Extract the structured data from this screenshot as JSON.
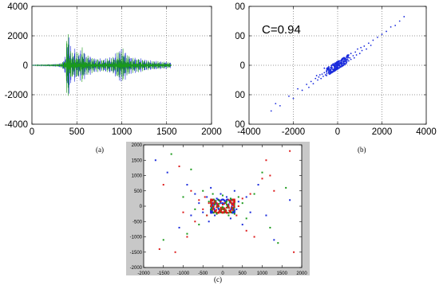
{
  "panels": {
    "a": {
      "label": "(a)",
      "chart_data": {
        "type": "line",
        "title": "",
        "xlabel": "",
        "ylabel": "",
        "xlim": [
          0,
          2000
        ],
        "ylim": [
          -4000,
          4000
        ],
        "xticks": [
          0,
          500,
          1000,
          1500,
          2000
        ],
        "yticks": [
          -4000,
          -2000,
          0,
          2000,
          4000
        ],
        "xtick_labels": [
          "0",
          "500",
          "1000",
          "1500",
          "2000"
        ],
        "ytick_labels": [
          "-4000",
          "-2000",
          "0",
          "2000",
          "4000"
        ],
        "grid": true,
        "series": [
          {
            "color": "#1a2bdc",
            "envelope": [
              [
                0,
                10
              ],
              [
                100,
                40
              ],
              [
                200,
                70
              ],
              [
                300,
                120
              ],
              [
                340,
                250
              ],
              [
                370,
                600
              ],
              [
                385,
                1700
              ],
              [
                395,
                3200
              ],
              [
                405,
                2600
              ],
              [
                420,
                1800
              ],
              [
                450,
                900
              ],
              [
                480,
                1200
              ],
              [
                520,
                900
              ],
              [
                560,
                1300
              ],
              [
                600,
                800
              ],
              [
                700,
                500
              ],
              [
                800,
                450
              ],
              [
                900,
                600
              ],
              [
                950,
                950
              ],
              [
                1000,
                1300
              ],
              [
                1050,
                900
              ],
              [
                1100,
                600
              ],
              [
                1200,
                500
              ],
              [
                1300,
                350
              ],
              [
                1400,
                300
              ],
              [
                1500,
                250
              ],
              [
                1550,
                200
              ]
            ]
          },
          {
            "color": "#1a9a1a",
            "envelope": [
              [
                0,
                8
              ],
              [
                100,
                35
              ],
              [
                200,
                60
              ],
              [
                300,
                110
              ],
              [
                340,
                220
              ],
              [
                370,
                550
              ],
              [
                385,
                1600
              ],
              [
                395,
                3300
              ],
              [
                405,
                2500
              ],
              [
                420,
                1700
              ],
              [
                450,
                850
              ],
              [
                480,
                1100
              ],
              [
                520,
                850
              ],
              [
                560,
                1250
              ],
              [
                600,
                750
              ],
              [
                700,
                480
              ],
              [
                800,
                420
              ],
              [
                900,
                560
              ],
              [
                950,
                900
              ],
              [
                1000,
                1250
              ],
              [
                1050,
                850
              ],
              [
                1100,
                560
              ],
              [
                1200,
                470
              ],
              [
                1300,
                330
              ],
              [
                1400,
                280
              ],
              [
                1500,
                230
              ],
              [
                1550,
                180
              ]
            ]
          }
        ]
      }
    },
    "b": {
      "label": "(b)",
      "annotation": "C=0.94",
      "chart_data": {
        "type": "scatter",
        "title": "",
        "xlabel": "",
        "ylabel": "",
        "xlim": [
          -4000,
          4000
        ],
        "ylim": [
          -4000,
          4000
        ],
        "xticks": [
          -4000,
          -2000,
          0,
          2000,
          4000
        ],
        "yticks": [
          -4000,
          -2000,
          0,
          2000,
          4000
        ],
        "xtick_labels": [
          "-4000",
          "-2000",
          "0",
          "2000",
          "4000"
        ],
        "ytick_labels": [
          "-4000",
          "-2000",
          "0",
          "2000",
          "4000"
        ],
        "grid": true,
        "correlation": 0.94,
        "marker_color": "#1a2bdc",
        "points": [
          [
            -3000,
            -3100
          ],
          [
            -2800,
            -2600
          ],
          [
            -2600,
            -2750
          ],
          [
            -2200,
            -2100
          ],
          [
            -2000,
            -2250
          ],
          [
            -1800,
            -1600
          ],
          [
            -1600,
            -1700
          ],
          [
            -1400,
            -1300
          ],
          [
            -1300,
            -1500
          ],
          [
            -1200,
            -1100
          ],
          [
            -1100,
            -1250
          ],
          [
            -1000,
            -900
          ],
          [
            -950,
            -700
          ],
          [
            -900,
            -1000
          ],
          [
            -850,
            -800
          ],
          [
            -800,
            -650
          ],
          [
            -750,
            -900
          ],
          [
            -700,
            -600
          ],
          [
            -650,
            -750
          ],
          [
            -600,
            -500
          ],
          [
            -600,
            -200
          ],
          [
            -550,
            -650
          ],
          [
            -500,
            -400
          ],
          [
            -500,
            -700
          ],
          [
            -450,
            -300
          ],
          [
            -400,
            -500
          ],
          [
            -400,
            -100
          ],
          [
            -350,
            -350
          ],
          [
            -300,
            -200
          ],
          [
            -300,
            -450
          ],
          [
            -250,
            -150
          ],
          [
            -200,
            -300
          ],
          [
            -200,
            100
          ],
          [
            -150,
            -100
          ],
          [
            -100,
            -250
          ],
          [
            -100,
            150
          ],
          [
            -50,
            0
          ],
          [
            0,
            -150
          ],
          [
            0,
            200
          ],
          [
            50,
            50
          ],
          [
            100,
            -50
          ],
          [
            100,
            300
          ],
          [
            150,
            150
          ],
          [
            200,
            0
          ],
          [
            200,
            350
          ],
          [
            250,
            250
          ],
          [
            300,
            100
          ],
          [
            300,
            450
          ],
          [
            350,
            300
          ],
          [
            400,
            200
          ],
          [
            400,
            550
          ],
          [
            450,
            400
          ],
          [
            500,
            300
          ],
          [
            500,
            700
          ],
          [
            550,
            500
          ],
          [
            600,
            400
          ],
          [
            600,
            800
          ],
          [
            700,
            650
          ],
          [
            750,
            500
          ],
          [
            800,
            900
          ],
          [
            850,
            700
          ],
          [
            900,
            1100
          ],
          [
            1000,
            800
          ],
          [
            1050,
            1200
          ],
          [
            1100,
            1000
          ],
          [
            1200,
            1300
          ],
          [
            1300,
            1100
          ],
          [
            1400,
            1500
          ],
          [
            1500,
            1350
          ],
          [
            1600,
            1700
          ],
          [
            1800,
            1900
          ],
          [
            2000,
            2100
          ],
          [
            2200,
            2300
          ],
          [
            2400,
            2600
          ],
          [
            2600,
            2700
          ],
          [
            2800,
            3000
          ],
          [
            3000,
            3300
          ]
        ]
      }
    },
    "c": {
      "label": "(c)",
      "chart_data": {
        "type": "scatter",
        "title": "",
        "xlabel": "",
        "ylabel": "",
        "xlim": [
          -2000,
          2000
        ],
        "ylim": [
          -2000,
          2000
        ],
        "xticks": [
          -2000,
          -1500,
          -1000,
          -500,
          0,
          500,
          1000,
          1500,
          2000
        ],
        "yticks": [
          -2000,
          -1500,
          -1000,
          -500,
          0,
          500,
          1000,
          1500,
          2000
        ],
        "xtick_labels": [
          "-2000",
          "-1500",
          "-1000",
          "-500",
          "0",
          "500",
          "1000",
          "1500",
          "2000"
        ],
        "ytick_labels": [
          "-2000",
          "-1500",
          "-1000",
          "-500",
          "0",
          "500",
          "1000",
          "1500",
          "2000"
        ],
        "grid": false,
        "frame_color": "#c8c8c8",
        "series": [
          {
            "color": "#1a2bdc",
            "points": [
              [
                -1700,
                1500
              ],
              [
                -1400,
                1100
              ],
              [
                -1100,
                -700
              ],
              [
                -900,
                700
              ],
              [
                -800,
                -300
              ],
              [
                -700,
                400
              ],
              [
                -600,
                100
              ],
              [
                -500,
                -200
              ],
              [
                -400,
                300
              ],
              [
                -350,
                -500
              ],
              [
                -300,
                600
              ],
              [
                -250,
                0
              ],
              [
                -200,
                -300
              ],
              [
                -150,
                250
              ],
              [
                -100,
                -100
              ],
              [
                -50,
                400
              ],
              [
                0,
                100
              ],
              [
                50,
                -200
              ],
              [
                100,
                300
              ],
              [
                150,
                0
              ],
              [
                200,
                -400
              ],
              [
                250,
                200
              ],
              [
                300,
                500
              ],
              [
                350,
                -100
              ],
              [
                400,
                150
              ],
              [
                500,
                -600
              ],
              [
                600,
                300
              ],
              [
                700,
                -200
              ],
              [
                900,
                700
              ],
              [
                1100,
                -300
              ],
              [
                1300,
                -1100
              ],
              [
                1700,
                200
              ]
            ]
          },
          {
            "color": "#1a9a1a",
            "points": [
              [
                -1500,
                -1100
              ],
              [
                -1300,
                1700
              ],
              [
                -1000,
                300
              ],
              [
                -900,
                -900
              ],
              [
                -800,
                1200
              ],
              [
                -700,
                -100
              ],
              [
                -600,
                -600
              ],
              [
                -500,
                500
              ],
              [
                -400,
                -300
              ],
              [
                -350,
                150
              ],
              [
                -300,
                -100
              ],
              [
                -250,
                400
              ],
              [
                -200,
                50
              ],
              [
                -150,
                -250
              ],
              [
                -100,
                200
              ],
              [
                -50,
                -50
              ],
              [
                0,
                350
              ],
              [
                50,
                -100
              ],
              [
                100,
                150
              ],
              [
                150,
                -300
              ],
              [
                200,
                250
              ],
              [
                250,
                -50
              ],
              [
                300,
                -250
              ],
              [
                400,
                300
              ],
              [
                500,
                100
              ],
              [
                600,
                -400
              ],
              [
                800,
                400
              ],
              [
                1000,
                1100
              ],
              [
                1200,
                -700
              ],
              [
                1400,
                -1200
              ],
              [
                1600,
                600
              ]
            ]
          },
          {
            "color": "#dd1a1a",
            "points": [
              [
                -1600,
                -1400
              ],
              [
                -1500,
                700
              ],
              [
                -1200,
                -1500
              ],
              [
                -1100,
                1300
              ],
              [
                -1000,
                -200
              ],
              [
                -900,
                -1000
              ],
              [
                -800,
                500
              ],
              [
                -700,
                -500
              ],
              [
                -600,
                200
              ],
              [
                -500,
                -100
              ],
              [
                -450,
                300
              ],
              [
                -400,
                -300
              ],
              [
                -350,
                100
              ],
              [
                -300,
                0
              ],
              [
                -250,
                200
              ],
              [
                -200,
                -150
              ],
              [
                -150,
                100
              ],
              [
                -100,
                0
              ],
              [
                -50,
                150
              ],
              [
                0,
                -100
              ],
              [
                0,
                50
              ],
              [
                50,
                100
              ],
              [
                100,
                -50
              ],
              [
                150,
                200
              ],
              [
                200,
                -150
              ],
              [
                250,
                50
              ],
              [
                300,
                150
              ],
              [
                350,
                -300
              ],
              [
                400,
                0
              ],
              [
                500,
                250
              ],
              [
                600,
                -800
              ],
              [
                700,
                400
              ],
              [
                800,
                -1000
              ],
              [
                1000,
                900
              ],
              [
                1100,
                1500
              ],
              [
                1200,
                1000
              ],
              [
                1300,
                500
              ],
              [
                1700,
                1800
              ],
              [
                1800,
                -1500
              ]
            ]
          }
        ]
      }
    }
  }
}
